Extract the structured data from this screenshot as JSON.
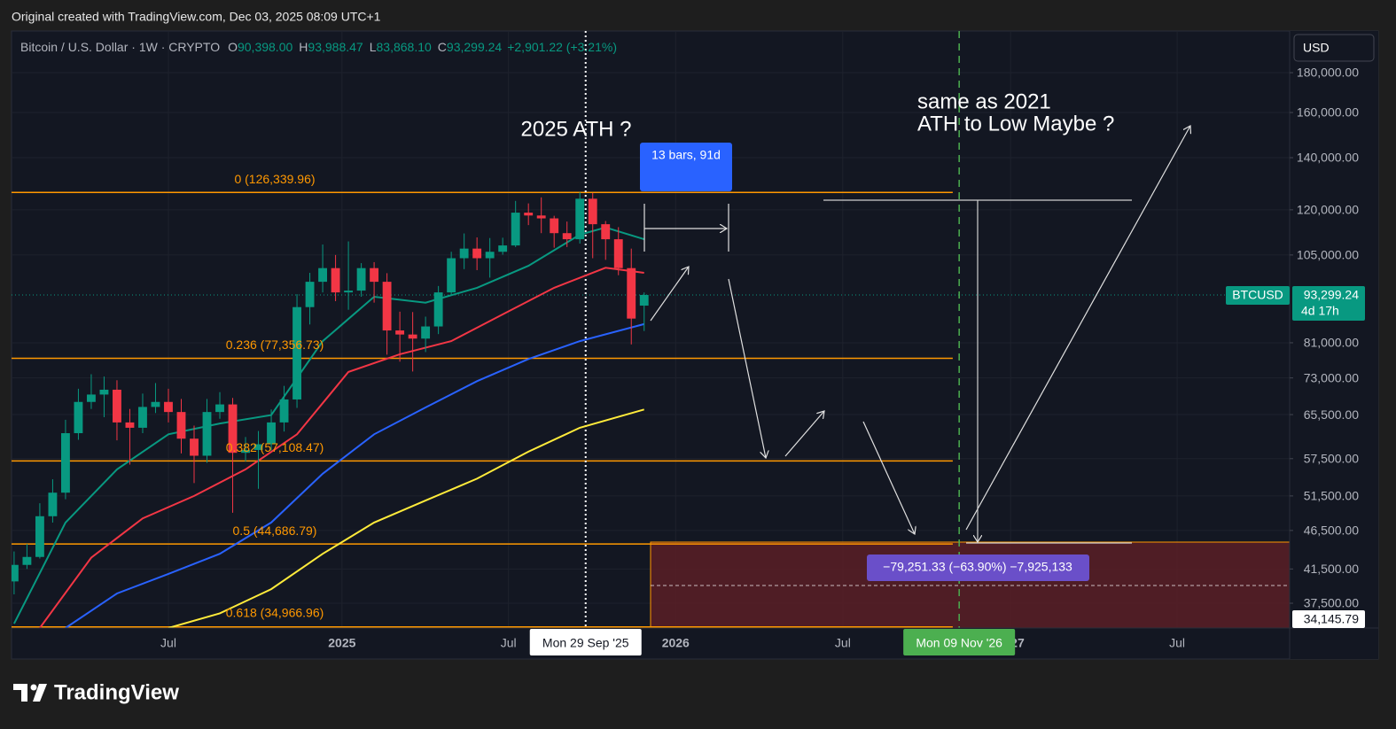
{
  "header": {
    "credit": "Original created with TradingView.com, Dec 03, 2025 08:09 UTC+1"
  },
  "footer": {
    "logo": "TradingView"
  },
  "chart_data": {
    "type": "candlestick",
    "legend": {
      "symbol": "Bitcoin / U.S. Dollar · 1W · CRYPTO",
      "items": [
        {
          "key": "O",
          "value": "90,398.00"
        },
        {
          "key": "H",
          "value": "93,988.47"
        },
        {
          "key": "L",
          "value": "83,868.10"
        },
        {
          "key": "C",
          "value": "93,299.24"
        }
      ],
      "change": "+2,901.22 (+3.21%)"
    },
    "currency": "USD",
    "log_scale": true,
    "grid": true,
    "up_color": "#089981",
    "down_color": "#f23645",
    "xlim": [
      -51.4,
      147.4
    ],
    "xticks": [
      {
        "value": -27,
        "label": "Jul"
      },
      {
        "value": 0,
        "label": "2025"
      },
      {
        "value": 25.9,
        "label": "Jul"
      },
      {
        "value": 51.9,
        "label": "2026"
      },
      {
        "value": 77.9,
        "label": "Jul"
      },
      {
        "value": 104,
        "label": "2027"
      },
      {
        "value": 129.9,
        "label": "Jul"
      }
    ],
    "ylim": [
      34850,
      203600
    ],
    "yticks": [
      {
        "value": 180000,
        "label": "180,000.00"
      },
      {
        "value": 160000,
        "label": "160,000.00"
      },
      {
        "value": 140000,
        "label": "140,000.00"
      },
      {
        "value": 120000,
        "label": "120,000.00"
      },
      {
        "value": 105000,
        "label": "105,000.00"
      },
      {
        "value": 81000,
        "label": "81,000.00"
      },
      {
        "value": 73000,
        "label": "73,000.00"
      },
      {
        "value": 65500,
        "label": "65,500.00"
      },
      {
        "value": 57500,
        "label": "57,500.00"
      },
      {
        "value": 51500,
        "label": "51,500.00"
      },
      {
        "value": 46500,
        "label": "46,500.00"
      },
      {
        "value": 41500,
        "label": "41,500.00"
      },
      {
        "value": 37500,
        "label": "37,500.00"
      }
    ],
    "candles": {
      "x": [
        -51,
        -49,
        -47,
        -45,
        -43,
        -41,
        -39,
        -37,
        -35,
        -33,
        -31,
        -29,
        -27,
        -25,
        -23,
        -21,
        -19,
        -17,
        -15,
        -13,
        -11,
        -9,
        -7,
        -5,
        -3,
        -1,
        1,
        3,
        5,
        7,
        9,
        11,
        13,
        15,
        17,
        19,
        21,
        23,
        25,
        27,
        29,
        31,
        33,
        35,
        37,
        39,
        41,
        43,
        45,
        47
      ],
      "open": [
        40000,
        42000,
        43000,
        48500,
        52000,
        62000,
        68000,
        69500,
        70500,
        64000,
        63000,
        67000,
        68000,
        66000,
        61000,
        58000,
        66000,
        67500,
        58500,
        59000,
        60000,
        64000,
        68500,
        90000,
        97000,
        101000,
        94000,
        94500,
        101000,
        97000,
        84000,
        83000,
        82000,
        85000,
        94000,
        104000,
        107000,
        104000,
        106000,
        108000,
        119000,
        118000,
        117000,
        112000,
        110000,
        124000,
        115000,
        110000,
        101000,
        90398
      ],
      "high": [
        43700,
        44700,
        50400,
        54100,
        64500,
        70700,
        73800,
        73300,
        72500,
        66600,
        69700,
        71900,
        70700,
        68600,
        63400,
        68600,
        70000,
        68800,
        61300,
        62400,
        66500,
        71300,
        93500,
        99600,
        108300,
        105000,
        109300,
        102500,
        102800,
        99500,
        88800,
        88700,
        87500,
        95800,
        106000,
        111900,
        110600,
        110400,
        110500,
        123200,
        122300,
        124500,
        117900,
        115900,
        126340,
        126100,
        116100,
        114000,
        107000,
        93988.47
      ],
      "low": [
        38500,
        41500,
        42800,
        47600,
        51000,
        60800,
        66600,
        65000,
        60700,
        56500,
        62000,
        65800,
        64000,
        58400,
        53500,
        56800,
        64700,
        49000,
        57000,
        52600,
        58900,
        62300,
        66800,
        85500,
        94000,
        91600,
        89300,
        92800,
        91200,
        78200,
        76600,
        74400,
        78800,
        83100,
        93300,
        100700,
        100400,
        98200,
        105100,
        107500,
        114700,
        112000,
        107300,
        107500,
        108600,
        104000,
        103500,
        98900,
        80600,
        83868.1
      ],
      "close": [
        42000,
        43000,
        48500,
        52000,
        62000,
        68000,
        69500,
        70500,
        64000,
        63000,
        67000,
        68000,
        66000,
        61000,
        58000,
        66000,
        67500,
        58500,
        59000,
        60000,
        64000,
        68500,
        90000,
        97000,
        101000,
        94000,
        94500,
        101000,
        97000,
        84000,
        83000,
        82000,
        85000,
        94000,
        104000,
        107000,
        104000,
        106000,
        108000,
        119000,
        118000,
        117000,
        112000,
        110000,
        124000,
        115000,
        110000,
        101000,
        87000,
        93299.24
      ]
    },
    "series": [
      {
        "color": "#089981",
        "x": [
          -51,
          -43,
          -35,
          -27,
          -19,
          -11,
          -3,
          5,
          13,
          21,
          29,
          37,
          41,
          47
        ],
        "values": [
          35300,
          47600,
          55700,
          61800,
          63800,
          65400,
          81400,
          92800,
          91200,
          95300,
          101700,
          111500,
          113900,
          110000
        ]
      },
      {
        "color": "#f23645",
        "x": [
          -47,
          -39,
          -31,
          -23,
          -15,
          -7,
          1,
          9,
          17,
          25,
          33,
          41,
          47
        ],
        "values": [
          34850,
          42900,
          48200,
          51500,
          55700,
          61800,
          74300,
          78300,
          81400,
          88100,
          95300,
          101100,
          99600
        ]
      },
      {
        "color": "#2962ff",
        "x": [
          -43,
          -35,
          -27,
          -19,
          -11,
          -3,
          5,
          13,
          21,
          29,
          37,
          47
        ],
        "values": [
          34850,
          38600,
          40900,
          43400,
          47600,
          55000,
          61800,
          66900,
          72300,
          77200,
          81400,
          85600
        ]
      },
      {
        "color": "#ffeb3b",
        "x": [
          -27,
          -19,
          -11,
          -3,
          5,
          13,
          21,
          29,
          37,
          47
        ],
        "values": [
          34850,
          36400,
          39100,
          43400,
          47600,
          50800,
          54200,
          58700,
          63000,
          66500
        ]
      }
    ],
    "fib_levels": [
      {
        "label": "0 (126,339.96)",
        "value": 126339.96
      },
      {
        "label": "0.236 (77,356.73)",
        "value": 77356.73
      },
      {
        "label": "0.382 (57,108.47)",
        "value": 57108.47
      },
      {
        "label": "0.5 (44,686.79)",
        "value": 44686.79
      },
      {
        "label": "0.618 (34,966.96)",
        "value": 34966.96
      }
    ],
    "fib_color": "#ff9800",
    "last_price": {
      "symbol": "BTCUSD",
      "value": 93299.24,
      "label": "93,299.24",
      "countdown": "4d 17h"
    },
    "crosshair": {
      "value": 34145.79,
      "label": "34,145.79"
    },
    "markers": [
      {
        "label": "Mon 29 Sep '25",
        "x": 37.9,
        "color": "#ffffff"
      },
      {
        "label": "Mon 09 Nov '26",
        "x": 96,
        "color": "#4caf50"
      }
    ],
    "annotations": {
      "ath": "2025 ATH ?",
      "note_line1": "same as 2021",
      "note_line2": "ATH to Low Maybe ?",
      "date_range": "13 bars, 91d",
      "measure": "−79,251.33 (−63.90%) −7,925,133"
    }
  }
}
